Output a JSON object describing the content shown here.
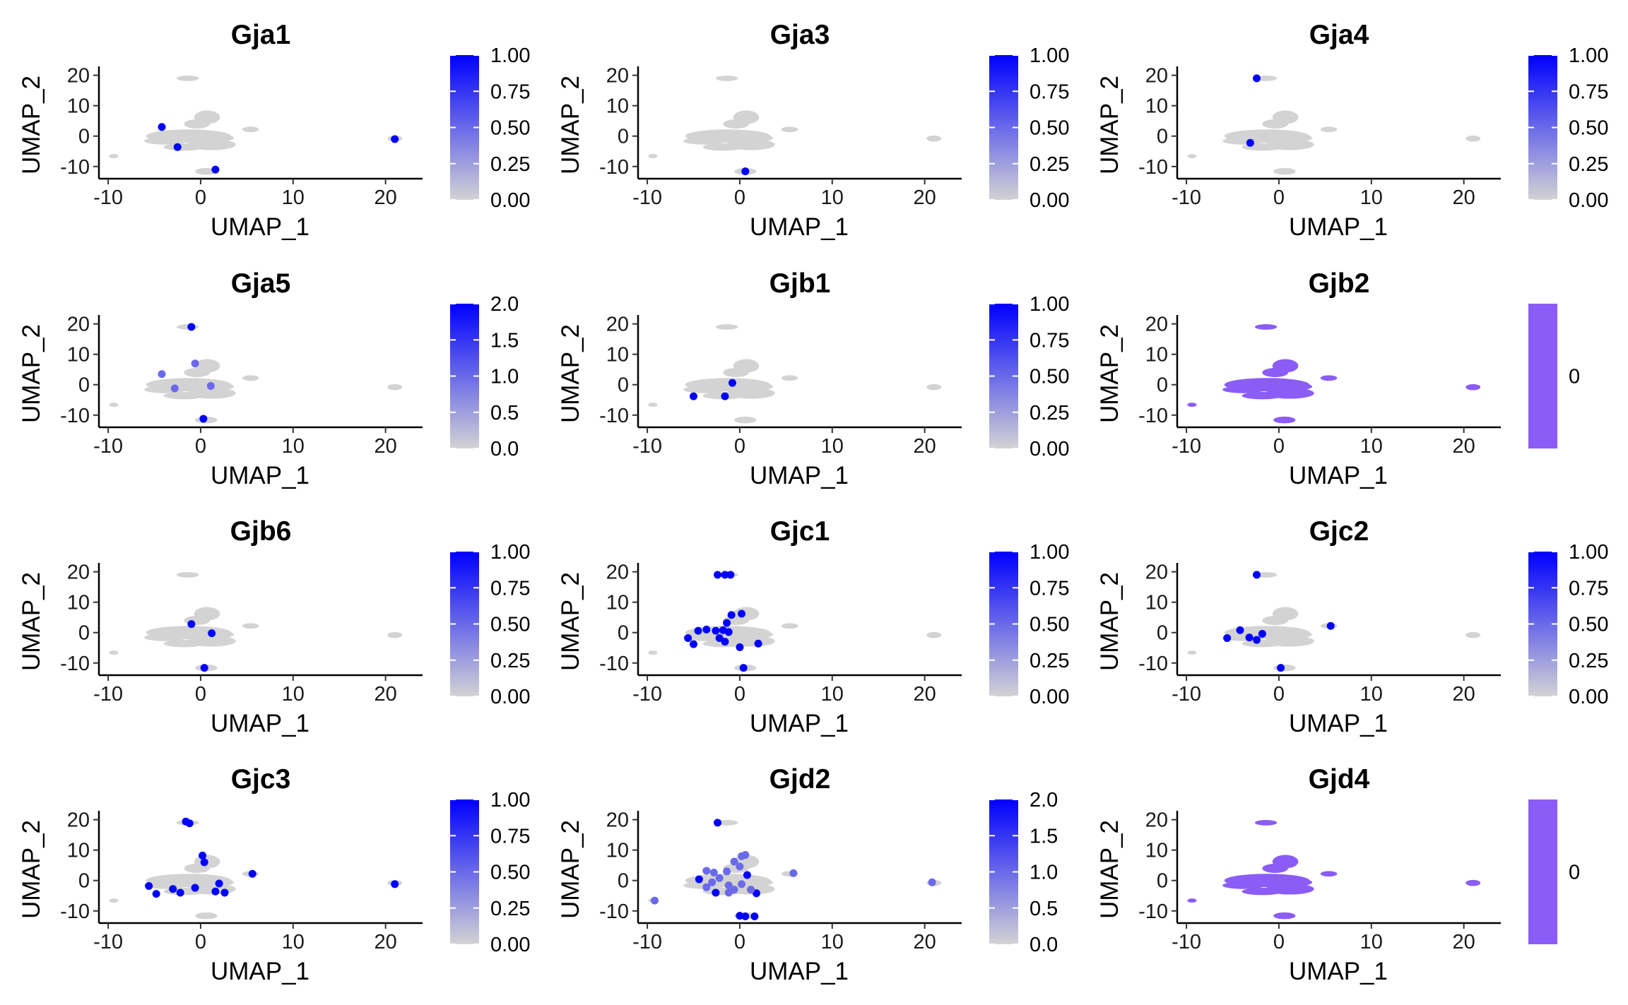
{
  "figure": {
    "layout": {
      "rows": 4,
      "cols": 3
    }
  },
  "chart_data": [
    {
      "type": "scatter",
      "title": "Gja1",
      "xlabel": "UMAP_1",
      "ylabel": "UMAP_2",
      "xlim": [
        -11,
        24
      ],
      "ylim": [
        -14,
        22
      ],
      "xticks": [
        "-10",
        "0",
        "10",
        "20"
      ],
      "yticks": [
        "-10",
        "0",
        "10",
        "20"
      ],
      "color_low": "#d3d3d3",
      "color_high": "#0000ff",
      "color_range": [
        0,
        1
      ],
      "colorbar_ticks": [
        "0.00",
        "0.25",
        "0.50",
        "0.75",
        "1.00"
      ],
      "grid": false,
      "legend": "right",
      "expressing_points": [
        {
          "x": -4.2,
          "y": 3.0,
          "value": 1
        },
        {
          "x": -2.5,
          "y": -3.6,
          "value": 1
        },
        {
          "x": 1.6,
          "y": -11.0,
          "value": 1
        },
        {
          "x": 21.0,
          "y": -1.0,
          "value": 1
        }
      ]
    },
    {
      "type": "scatter",
      "title": "Gja3",
      "xlabel": "UMAP_1",
      "ylabel": "UMAP_2",
      "xlim": [
        -11,
        24
      ],
      "ylim": [
        -14,
        22
      ],
      "xticks": [
        "-10",
        "0",
        "10",
        "20"
      ],
      "yticks": [
        "-10",
        "0",
        "10",
        "20"
      ],
      "color_low": "#d3d3d3",
      "color_high": "#0000ff",
      "color_range": [
        0,
        1
      ],
      "colorbar_ticks": [
        "0.00",
        "0.25",
        "0.50",
        "0.75",
        "1.00"
      ],
      "grid": false,
      "legend": "right",
      "expressing_points": [
        {
          "x": 0.6,
          "y": -11.6,
          "value": 1
        }
      ]
    },
    {
      "type": "scatter",
      "title": "Gja4",
      "xlabel": "UMAP_1",
      "ylabel": "UMAP_2",
      "xlim": [
        -11,
        24
      ],
      "ylim": [
        -14,
        22
      ],
      "xticks": [
        "-10",
        "0",
        "10",
        "20"
      ],
      "yticks": [
        "-10",
        "0",
        "10",
        "20"
      ],
      "color_low": "#d3d3d3",
      "color_high": "#0000ff",
      "color_range": [
        0,
        1
      ],
      "colorbar_ticks": [
        "0.00",
        "0.25",
        "0.50",
        "0.75",
        "1.00"
      ],
      "grid": false,
      "legend": "right",
      "expressing_points": [
        {
          "x": -2.4,
          "y": 19.0,
          "value": 1
        },
        {
          "x": -3.1,
          "y": -2.2,
          "value": 1
        }
      ]
    },
    {
      "type": "scatter",
      "title": "Gja5",
      "xlabel": "UMAP_1",
      "ylabel": "UMAP_2",
      "xlim": [
        -11,
        24
      ],
      "ylim": [
        -14,
        22
      ],
      "xticks": [
        "-10",
        "0",
        "10",
        "20"
      ],
      "yticks": [
        "-10",
        "0",
        "10",
        "20"
      ],
      "color_low": "#d3d3d3",
      "color_high": "#0000ff",
      "color_range": [
        0,
        2
      ],
      "colorbar_ticks": [
        "0.0",
        "0.5",
        "1.0",
        "1.5",
        "2.0"
      ],
      "grid": false,
      "legend": "right",
      "expressing_points": [
        {
          "x": -1.0,
          "y": 19.0,
          "value": 2
        },
        {
          "x": -4.2,
          "y": 3.5,
          "value": 1
        },
        {
          "x": -0.6,
          "y": 7.0,
          "value": 1
        },
        {
          "x": -2.8,
          "y": -1.2,
          "value": 1
        },
        {
          "x": 1.1,
          "y": -0.4,
          "value": 1
        },
        {
          "x": 0.3,
          "y": -11.2,
          "value": 2
        }
      ]
    },
    {
      "type": "scatter",
      "title": "Gjb1",
      "xlabel": "UMAP_1",
      "ylabel": "UMAP_2",
      "xlim": [
        -11,
        24
      ],
      "ylim": [
        -14,
        22
      ],
      "xticks": [
        "-10",
        "0",
        "10",
        "20"
      ],
      "yticks": [
        "-10",
        "0",
        "10",
        "20"
      ],
      "color_low": "#d3d3d3",
      "color_high": "#0000ff",
      "color_range": [
        0,
        1
      ],
      "colorbar_ticks": [
        "0.00",
        "0.25",
        "0.50",
        "0.75",
        "1.00"
      ],
      "grid": false,
      "legend": "right",
      "expressing_points": [
        {
          "x": -5.0,
          "y": -3.8,
          "value": 1
        },
        {
          "x": -1.6,
          "y": -3.8,
          "value": 1
        },
        {
          "x": -0.8,
          "y": 0.6,
          "value": 1
        }
      ]
    },
    {
      "type": "scatter",
      "title": "Gjb2",
      "xlabel": "UMAP_1",
      "ylabel": "UMAP_2",
      "xlim": [
        -11,
        24
      ],
      "ylim": [
        -14,
        22
      ],
      "xticks": [
        "-10",
        "0",
        "10",
        "20"
      ],
      "yticks": [
        "-10",
        "0",
        "10",
        "20"
      ],
      "color_low": "#8B5CF6",
      "color_high": "#8B5CF6",
      "color_range": [
        0,
        0
      ],
      "colorbar_ticks": [
        "0"
      ],
      "grid": false,
      "legend": "right",
      "uniform_color": "#8B5CF6",
      "expressing_points": []
    },
    {
      "type": "scatter",
      "title": "Gjb6",
      "xlabel": "UMAP_1",
      "ylabel": "UMAP_2",
      "xlim": [
        -11,
        24
      ],
      "ylim": [
        -14,
        22
      ],
      "xticks": [
        "-10",
        "0",
        "10",
        "20"
      ],
      "yticks": [
        "-10",
        "0",
        "10",
        "20"
      ],
      "color_low": "#d3d3d3",
      "color_high": "#0000ff",
      "color_range": [
        0,
        1
      ],
      "colorbar_ticks": [
        "0.00",
        "0.25",
        "0.50",
        "0.75",
        "1.00"
      ],
      "grid": false,
      "legend": "right",
      "expressing_points": [
        {
          "x": -1.0,
          "y": 2.8,
          "value": 1
        },
        {
          "x": 1.2,
          "y": -0.2,
          "value": 1
        },
        {
          "x": 0.4,
          "y": -11.6,
          "value": 1
        }
      ]
    },
    {
      "type": "scatter",
      "title": "Gjc1",
      "xlabel": "UMAP_1",
      "ylabel": "UMAP_2",
      "xlim": [
        -11,
        24
      ],
      "ylim": [
        -14,
        22
      ],
      "xticks": [
        "-10",
        "0",
        "10",
        "20"
      ],
      "yticks": [
        "-10",
        "0",
        "10",
        "20"
      ],
      "color_low": "#d3d3d3",
      "color_high": "#0000ff",
      "color_range": [
        0,
        1
      ],
      "colorbar_ticks": [
        "0.00",
        "0.25",
        "0.50",
        "0.75",
        "1.00"
      ],
      "grid": false,
      "legend": "right",
      "expressing_points": [
        {
          "x": -2.4,
          "y": 19.0,
          "value": 1
        },
        {
          "x": -1.6,
          "y": 19.0,
          "value": 1
        },
        {
          "x": -1.0,
          "y": 19.0,
          "value": 1
        },
        {
          "x": -0.9,
          "y": 5.8,
          "value": 1
        },
        {
          "x": 0.2,
          "y": 6.2,
          "value": 1
        },
        {
          "x": -1.4,
          "y": 3.2,
          "value": 1
        },
        {
          "x": -4.5,
          "y": 0.6,
          "value": 1
        },
        {
          "x": -3.6,
          "y": 1.0,
          "value": 1
        },
        {
          "x": -2.6,
          "y": 0.6,
          "value": 1
        },
        {
          "x": -1.8,
          "y": 0.8,
          "value": 1
        },
        {
          "x": -1.2,
          "y": 0.2,
          "value": 1
        },
        {
          "x": -5.6,
          "y": -1.8,
          "value": 1
        },
        {
          "x": -5.0,
          "y": -3.8,
          "value": 1
        },
        {
          "x": -2.2,
          "y": -1.8,
          "value": 1
        },
        {
          "x": -1.6,
          "y": -3.0,
          "value": 1
        },
        {
          "x": 0.0,
          "y": -4.8,
          "value": 1
        },
        {
          "x": 2.0,
          "y": -3.6,
          "value": 1
        },
        {
          "x": 0.4,
          "y": -11.6,
          "value": 1
        }
      ]
    },
    {
      "type": "scatter",
      "title": "Gjc2",
      "xlabel": "UMAP_1",
      "ylabel": "UMAP_2",
      "xlim": [
        -11,
        24
      ],
      "ylim": [
        -14,
        22
      ],
      "xticks": [
        "-10",
        "0",
        "10",
        "20"
      ],
      "yticks": [
        "-10",
        "0",
        "10",
        "20"
      ],
      "color_low": "#d3d3d3",
      "color_high": "#0000ff",
      "color_range": [
        0,
        1
      ],
      "colorbar_ticks": [
        "0.00",
        "0.25",
        "0.50",
        "0.75",
        "1.00"
      ],
      "grid": false,
      "legend": "right",
      "expressing_points": [
        {
          "x": -2.4,
          "y": 19.0,
          "value": 1
        },
        {
          "x": -5.6,
          "y": -1.8,
          "value": 1
        },
        {
          "x": -4.2,
          "y": 0.8,
          "value": 1
        },
        {
          "x": -3.2,
          "y": -1.6,
          "value": 1
        },
        {
          "x": -2.4,
          "y": -2.4,
          "value": 1
        },
        {
          "x": -1.8,
          "y": -0.4,
          "value": 1
        },
        {
          "x": 0.2,
          "y": -11.6,
          "value": 1
        },
        {
          "x": 5.6,
          "y": 2.2,
          "value": 1
        }
      ]
    },
    {
      "type": "scatter",
      "title": "Gjc3",
      "xlabel": "UMAP_1",
      "ylabel": "UMAP_2",
      "xlim": [
        -11,
        24
      ],
      "ylim": [
        -14,
        22
      ],
      "xticks": [
        "-10",
        "0",
        "10",
        "20"
      ],
      "yticks": [
        "-10",
        "0",
        "10",
        "20"
      ],
      "color_low": "#d3d3d3",
      "color_high": "#0000ff",
      "color_range": [
        0,
        1
      ],
      "colorbar_ticks": [
        "0.00",
        "0.25",
        "0.50",
        "0.75",
        "1.00"
      ],
      "grid": false,
      "legend": "right",
      "expressing_points": [
        {
          "x": -1.6,
          "y": 19.4,
          "value": 1
        },
        {
          "x": -1.2,
          "y": 18.8,
          "value": 1
        },
        {
          "x": 0.2,
          "y": 8.2,
          "value": 1
        },
        {
          "x": 0.4,
          "y": 6.0,
          "value": 1
        },
        {
          "x": -5.6,
          "y": -1.8,
          "value": 1
        },
        {
          "x": -4.8,
          "y": -4.4,
          "value": 1
        },
        {
          "x": -3.0,
          "y": -2.8,
          "value": 1
        },
        {
          "x": -2.2,
          "y": -4.0,
          "value": 1
        },
        {
          "x": -0.6,
          "y": -2.4,
          "value": 1
        },
        {
          "x": 1.6,
          "y": -3.6,
          "value": 1
        },
        {
          "x": 2.0,
          "y": -1.0,
          "value": 1
        },
        {
          "x": 2.6,
          "y": -4.0,
          "value": 1
        },
        {
          "x": 5.6,
          "y": 2.2,
          "value": 1
        },
        {
          "x": 21.0,
          "y": -1.2,
          "value": 1
        }
      ]
    },
    {
      "type": "scatter",
      "title": "Gjd2",
      "xlabel": "UMAP_1",
      "ylabel": "UMAP_2",
      "xlim": [
        -11,
        24
      ],
      "ylim": [
        -14,
        22
      ],
      "xticks": [
        "-10",
        "0",
        "10",
        "20"
      ],
      "yticks": [
        "-10",
        "0",
        "10",
        "20"
      ],
      "color_low": "#d3d3d3",
      "color_high": "#0000ff",
      "color_range": [
        0,
        2
      ],
      "colorbar_ticks": [
        "0.0",
        "0.5",
        "1.0",
        "1.5",
        "2.0"
      ],
      "grid": false,
      "legend": "right",
      "expressing_points": [
        {
          "x": -2.4,
          "y": 19.0,
          "value": 2
        },
        {
          "x": -9.2,
          "y": -6.6,
          "value": 1
        },
        {
          "x": 0.2,
          "y": 8.0,
          "value": 1
        },
        {
          "x": 0.6,
          "y": 8.4,
          "value": 1
        },
        {
          "x": -0.6,
          "y": 6.2,
          "value": 1
        },
        {
          "x": 0.0,
          "y": 4.6,
          "value": 1
        },
        {
          "x": -3.6,
          "y": 3.2,
          "value": 1
        },
        {
          "x": -2.8,
          "y": 2.6,
          "value": 1
        },
        {
          "x": -1.4,
          "y": 3.0,
          "value": 1
        },
        {
          "x": -4.4,
          "y": 0.4,
          "value": 2
        },
        {
          "x": -3.0,
          "y": -0.6,
          "value": 1
        },
        {
          "x": -2.2,
          "y": 0.8,
          "value": 1
        },
        {
          "x": -1.2,
          "y": -1.6,
          "value": 1
        },
        {
          "x": 0.2,
          "y": -1.2,
          "value": 1
        },
        {
          "x": 0.8,
          "y": 1.8,
          "value": 2
        },
        {
          "x": -3.6,
          "y": -2.2,
          "value": 1
        },
        {
          "x": -2.6,
          "y": -4.0,
          "value": 2
        },
        {
          "x": -1.2,
          "y": -4.0,
          "value": 1
        },
        {
          "x": 1.8,
          "y": -4.2,
          "value": 2
        },
        {
          "x": -0.6,
          "y": -3.0,
          "value": 1
        },
        {
          "x": 1.2,
          "y": -3.0,
          "value": 1
        },
        {
          "x": 0.0,
          "y": -11.6,
          "value": 2
        },
        {
          "x": 0.6,
          "y": -11.8,
          "value": 2
        },
        {
          "x": 1.6,
          "y": -11.8,
          "value": 2
        },
        {
          "x": 5.8,
          "y": 2.4,
          "value": 1
        },
        {
          "x": 20.8,
          "y": -0.6,
          "value": 1
        }
      ]
    },
    {
      "type": "scatter",
      "title": "Gjd4",
      "xlabel": "UMAP_1",
      "ylabel": "UMAP_2",
      "xlim": [
        -11,
        24
      ],
      "ylim": [
        -14,
        22
      ],
      "xticks": [
        "-10",
        "0",
        "10",
        "20"
      ],
      "yticks": [
        "-10",
        "0",
        "10",
        "20"
      ],
      "color_low": "#8B5CF6",
      "color_high": "#8B5CF6",
      "color_range": [
        0,
        0
      ],
      "colorbar_ticks": [
        "0"
      ],
      "grid": false,
      "legend": "right",
      "uniform_color": "#8B5CF6",
      "expressing_points": []
    }
  ]
}
